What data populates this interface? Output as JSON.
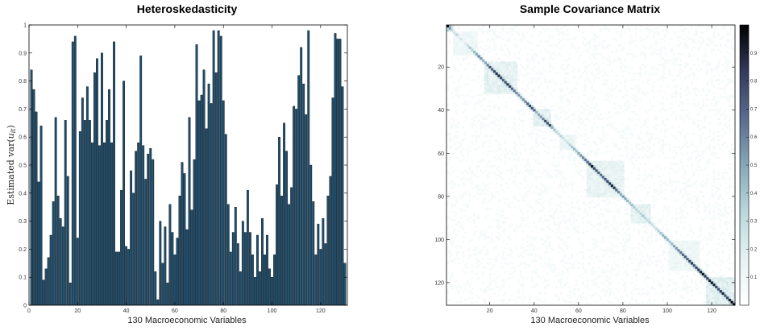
{
  "chart_data": [
    {
      "type": "bar",
      "title": "Heteroskedasticity",
      "xlabel": "130 Macroeconomic Variables",
      "ylabel_text": "Estimated var(",
      "ylabel_var": "u",
      "ylabel_sub": "it",
      "ylabel_close": ")",
      "xlim": [
        0,
        131
      ],
      "ylim": [
        0,
        1
      ],
      "xticks": [
        0,
        20,
        40,
        60,
        80,
        100,
        120
      ],
      "yticks": [
        0,
        0.1,
        0.2,
        0.3,
        0.4,
        0.5,
        0.6,
        0.7,
        0.8,
        0.9,
        1
      ],
      "bar_color": "#1f4e6e",
      "edge_color": "#000000",
      "values": [
        0.84,
        0.77,
        0.69,
        0.44,
        0.64,
        0.09,
        0.13,
        0.17,
        0.25,
        0.37,
        0.67,
        0.39,
        0.31,
        0.28,
        0.66,
        0.46,
        0.08,
        0.94,
        0.96,
        0.24,
        0.62,
        0.74,
        0.66,
        0.78,
        0.66,
        0.58,
        0.83,
        0.88,
        0.57,
        0.9,
        0.58,
        0.66,
        0.77,
        0.58,
        0.94,
        0.19,
        0.19,
        0.41,
        0.8,
        0.21,
        0.2,
        0.48,
        0.4,
        0.55,
        0.58,
        0.89,
        0.57,
        0.45,
        0.54,
        0.56,
        0.52,
        0.12,
        0.02,
        0.3,
        0.15,
        0.28,
        0.08,
        0.36,
        0.26,
        0.18,
        0.24,
        0.39,
        0.51,
        0.47,
        0.27,
        0.67,
        0.34,
        0.52,
        0.93,
        0.73,
        0.75,
        0.84,
        0.63,
        0.79,
        0.72,
        0.98,
        0.83,
        0.98,
        0.96,
        0.73,
        0.61,
        0.36,
        0.19,
        0.26,
        0.35,
        0.22,
        0.12,
        0.3,
        0.26,
        0.41,
        0.26,
        0.18,
        0.1,
        0.25,
        0.12,
        0.31,
        0.18,
        0.25,
        0.13,
        0.1,
        0.18,
        0.43,
        0.6,
        0.39,
        0.65,
        0.55,
        0.36,
        0.42,
        0.71,
        0.7,
        0.82,
        0.92,
        0.79,
        0.68,
        0.98,
        0.5,
        0.37,
        0.18,
        0.29,
        0.2,
        0.31,
        0.22,
        0.39,
        0.46,
        0.74,
        0.97,
        0.95,
        0.95,
        0.78,
        0.15
      ]
    },
    {
      "type": "heatmap",
      "title": "Sample Covariance Matrix",
      "xlabel": "130 Macroeconomic Variables",
      "size": 130,
      "xticks": [
        20,
        40,
        60,
        80,
        100,
        120
      ],
      "yticks": [
        20,
        40,
        60,
        80,
        100,
        120
      ],
      "colorbar_ticks": [
        0.1,
        0.2,
        0.3,
        0.4,
        0.5,
        0.6,
        0.7,
        0.8,
        0.9
      ],
      "colorbar_range": [
        0,
        1
      ],
      "colormap": [
        "#ffffff",
        "#e6f2f2",
        "#b9d8dc",
        "#86a8b8",
        "#5a6c8e",
        "#333a5c",
        "#000000"
      ],
      "diagonal_values": [
        1.0,
        0.55,
        0.3,
        0.25,
        0.35,
        0.2,
        0.25,
        0.15,
        0.2,
        0.3,
        0.4,
        0.35,
        0.45,
        0.5,
        0.6,
        0.55,
        0.45,
        0.5,
        0.6,
        0.75,
        0.7,
        0.8,
        0.85,
        0.9,
        0.8,
        0.7,
        0.75,
        0.85,
        0.8,
        0.7,
        0.65,
        0.6,
        0.55,
        0.5,
        0.55,
        0.6,
        0.7,
        0.8,
        0.75,
        0.7,
        0.45,
        0.5,
        0.55,
        0.6,
        0.8,
        0.75,
        0.85,
        0.5,
        0.4,
        0.35,
        0.3,
        0.35,
        0.3,
        0.25,
        0.3,
        0.35,
        0.4,
        0.45,
        0.4,
        0.5,
        0.55,
        0.6,
        0.65,
        0.7,
        0.85,
        0.95,
        0.8,
        0.75,
        0.7,
        0.65,
        0.7,
        0.75,
        0.8,
        0.85,
        0.9,
        0.85,
        0.7,
        0.6,
        0.5,
        0.55,
        0.5,
        0.45,
        0.4,
        0.45,
        0.4,
        0.35,
        0.3,
        0.35,
        0.4,
        0.35,
        0.3,
        0.35,
        0.3,
        0.25,
        0.3,
        0.35,
        0.4,
        0.45,
        0.5,
        0.45,
        0.4,
        0.45,
        0.5,
        0.55,
        0.6,
        0.65,
        0.7,
        0.75,
        0.7,
        0.8,
        0.85,
        0.75,
        0.8,
        0.85,
        0.9,
        0.95,
        0.85,
        0.8,
        0.9,
        0.95,
        0.9,
        0.8,
        0.75,
        0.85,
        0.9,
        0.75,
        0.8,
        0.9,
        1.0,
        1.0
      ],
      "blocks": [
        {
          "start": 1,
          "end": 3,
          "value": 0.35
        },
        {
          "start": 4,
          "end": 14,
          "value": 0.12
        },
        {
          "start": 18,
          "end": 32,
          "value": 0.18
        },
        {
          "start": 40,
          "end": 47,
          "value": 0.2
        },
        {
          "start": 52,
          "end": 58,
          "value": 0.14
        },
        {
          "start": 64,
          "end": 80,
          "value": 0.16
        },
        {
          "start": 84,
          "end": 92,
          "value": 0.18
        },
        {
          "start": 101,
          "end": 114,
          "value": 0.12
        },
        {
          "start": 118,
          "end": 130,
          "value": 0.2
        }
      ]
    }
  ]
}
